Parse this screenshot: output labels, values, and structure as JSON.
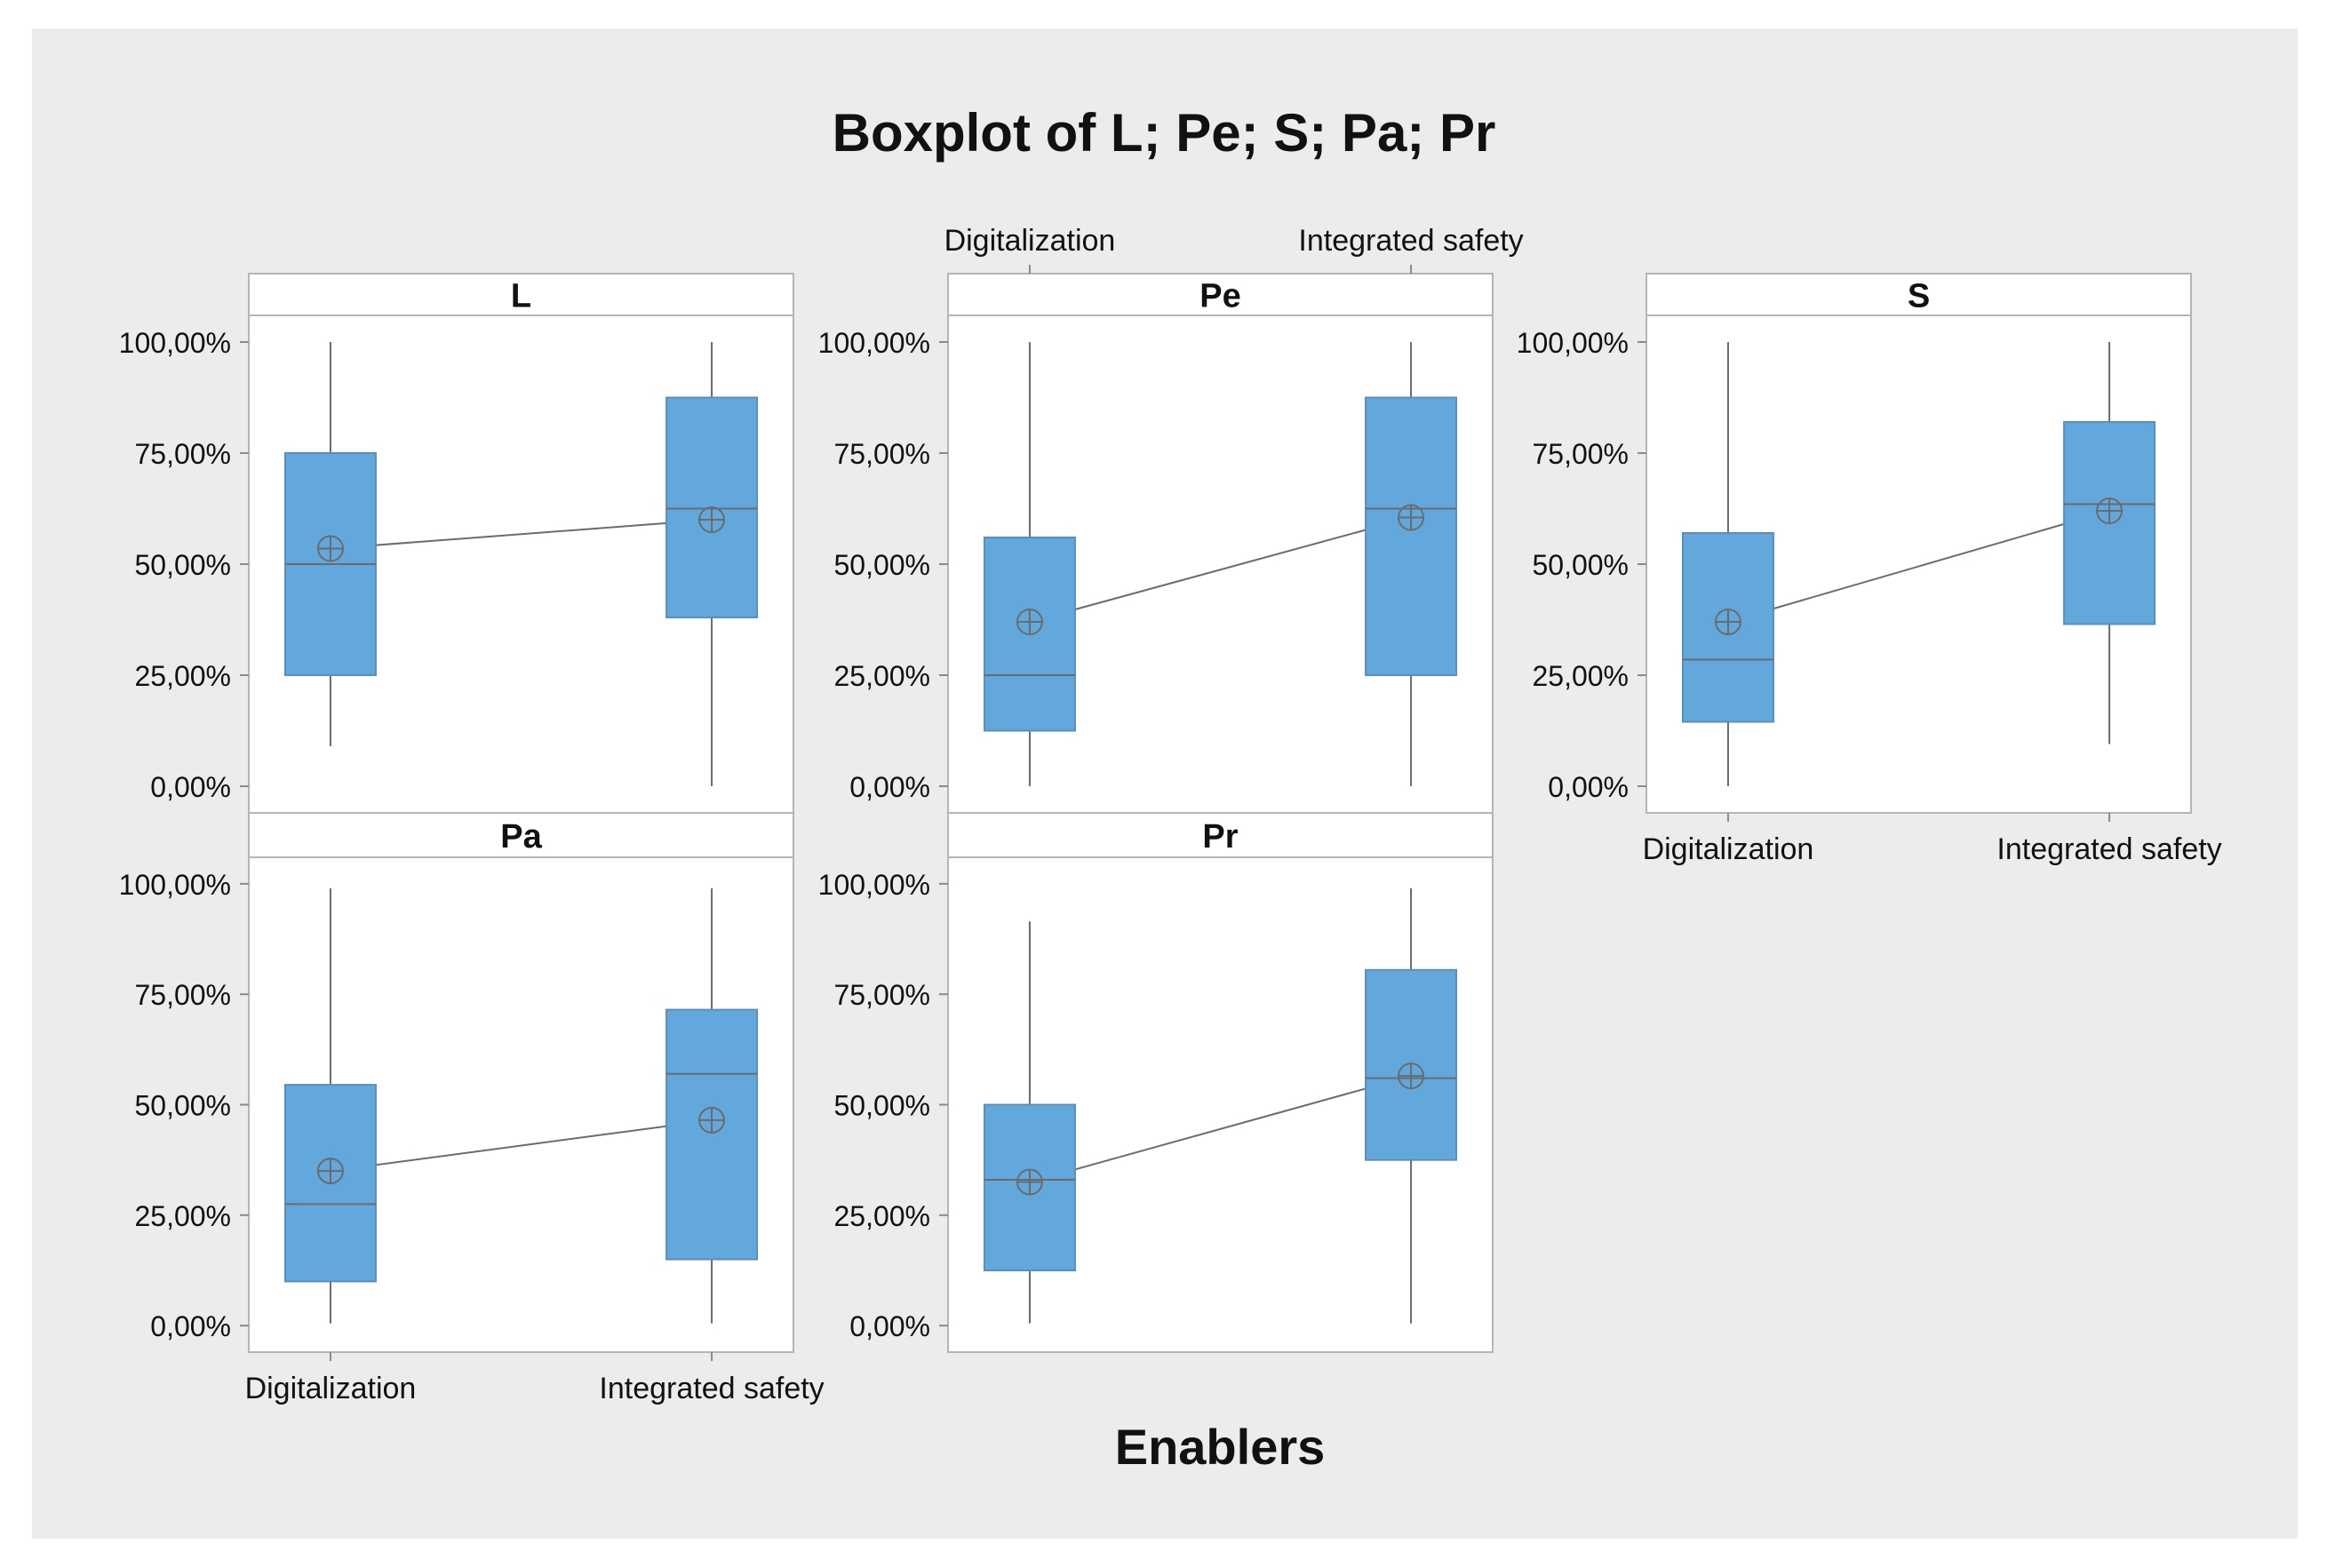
{
  "chart_data": {
    "type": "boxplot",
    "title": "Boxplot of L; Pe; S; Pa; Pr",
    "xlabel": "Enablers",
    "categories": [
      "Digitalization",
      "Integrated safety"
    ],
    "yticks": [
      0,
      25,
      50,
      75,
      100
    ],
    "ytick_labels": [
      "0,00%",
      "25,00%",
      "50,00%",
      "75,00%",
      "100,00%"
    ],
    "ylim": [
      -6,
      106
    ],
    "colors": {
      "background": "#ececec",
      "panel": "#ffffff",
      "box_fill": "#63a8dc",
      "line": "#6b6b6b",
      "text": "#111111"
    },
    "panels": [
      {
        "name": "L",
        "boxes": [
          {
            "category": "Digitalization",
            "min": 9,
            "q1": 25,
            "median": 50,
            "q3": 75,
            "max": 100,
            "mean": 53.5
          },
          {
            "category": "Integrated safety",
            "min": 0,
            "q1": 38,
            "median": 62.5,
            "q3": 87.5,
            "max": 100,
            "mean": 60
          }
        ]
      },
      {
        "name": "Pe",
        "boxes": [
          {
            "category": "Digitalization",
            "min": 0,
            "q1": 12.5,
            "median": 25,
            "q3": 56,
            "max": 100,
            "mean": 37
          },
          {
            "category": "Integrated safety",
            "min": 0,
            "q1": 25,
            "median": 62.5,
            "q3": 87.5,
            "max": 100,
            "mean": 60.5
          }
        ]
      },
      {
        "name": "S",
        "boxes": [
          {
            "category": "Digitalization",
            "min": 0,
            "q1": 14.5,
            "median": 28.5,
            "q3": 57,
            "max": 100,
            "mean": 37
          },
          {
            "category": "Integrated safety",
            "min": 9.5,
            "q1": 36.5,
            "median": 63.5,
            "q3": 82,
            "max": 100,
            "mean": 62
          }
        ]
      },
      {
        "name": "Pa",
        "boxes": [
          {
            "category": "Digitalization",
            "min": 0.5,
            "q1": 10,
            "median": 27.5,
            "q3": 54.5,
            "max": 99,
            "mean": 35
          },
          {
            "category": "Integrated safety",
            "min": 0.5,
            "q1": 15,
            "median": 57,
            "q3": 71.5,
            "max": 99,
            "mean": 46.5
          }
        ]
      },
      {
        "name": "Pr",
        "boxes": [
          {
            "category": "Digitalization",
            "min": 0.5,
            "q1": 12.5,
            "median": 33,
            "q3": 50,
            "max": 91.5,
            "mean": 32.5
          },
          {
            "category": "Integrated safety",
            "min": 0.5,
            "q1": 37.5,
            "median": 56,
            "q3": 80.5,
            "max": 99,
            "mean": 56.5
          }
        ]
      }
    ]
  }
}
